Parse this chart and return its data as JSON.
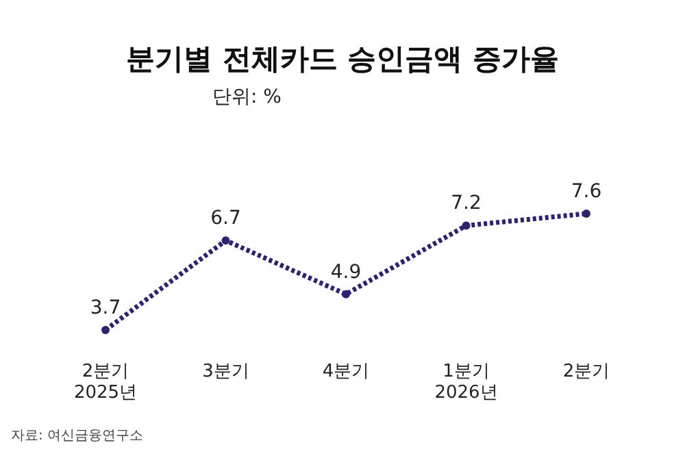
{
  "chart_data": {
    "type": "line",
    "title": "분기별 전체카드 승인금액 증가율",
    "subtitle": "단위: %",
    "categories": [
      "2분기\n2025년",
      "3분기",
      "4분기",
      "1분기\n2026년",
      "2분기"
    ],
    "series": [
      {
        "color": "#2b2270",
        "values": [
          3.7,
          6.7,
          4.9,
          7.2,
          7.6
        ]
      }
    ],
    "data_labels": true,
    "marker": "circle",
    "line_style": "dotted",
    "annotations": [
      "자료: 여신금융연구소"
    ]
  }
}
